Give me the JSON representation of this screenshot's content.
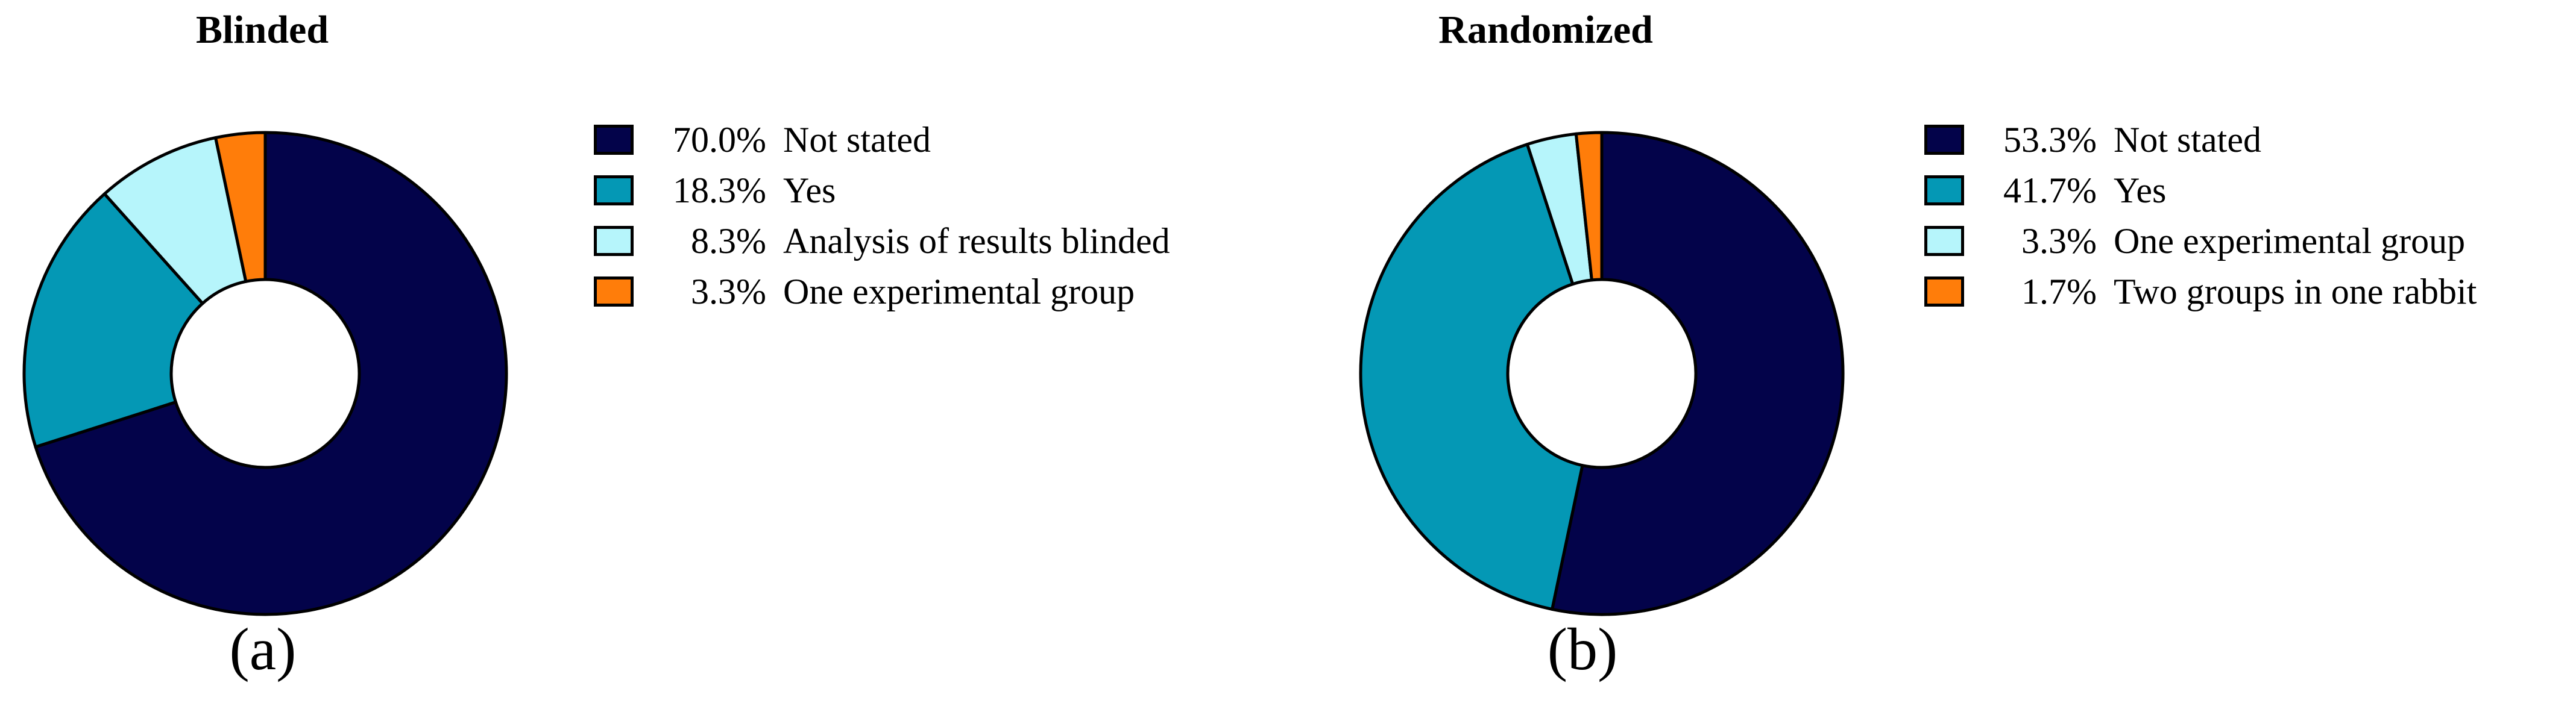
{
  "chart_data": [
    {
      "type": "pie",
      "title": "Blinded",
      "panel_label": "(a)",
      "slices": [
        {
          "label": "Not stated",
          "value": 70.0,
          "display": "70.0%",
          "color": "#03034a"
        },
        {
          "label": "Yes",
          "value": 18.3,
          "display": "18.3%",
          "color": "#0498b5"
        },
        {
          "label": "Analysis of results blinded",
          "value": 8.3,
          "display": "8.3%",
          "color": "#b6f5fb"
        },
        {
          "label": "One experimental group",
          "value": 3.3,
          "display": "3.3%",
          "color": "#ff7d0a"
        }
      ],
      "legend_position": "right"
    },
    {
      "type": "pie",
      "title": "Randomized",
      "panel_label": "(b)",
      "slices": [
        {
          "label": "Not stated",
          "value": 53.3,
          "display": "53.3%",
          "color": "#03034a"
        },
        {
          "label": "Yes",
          "value": 41.7,
          "display": "41.7%",
          "color": "#0498b5"
        },
        {
          "label": "One experimental group",
          "value": 3.3,
          "display": "3.3%",
          "color": "#b6f5fb"
        },
        {
          "label": "Two groups in one rabbit",
          "value": 1.7,
          "display": "1.7%",
          "color": "#ff7d0a"
        }
      ],
      "legend_position": "right"
    }
  ]
}
